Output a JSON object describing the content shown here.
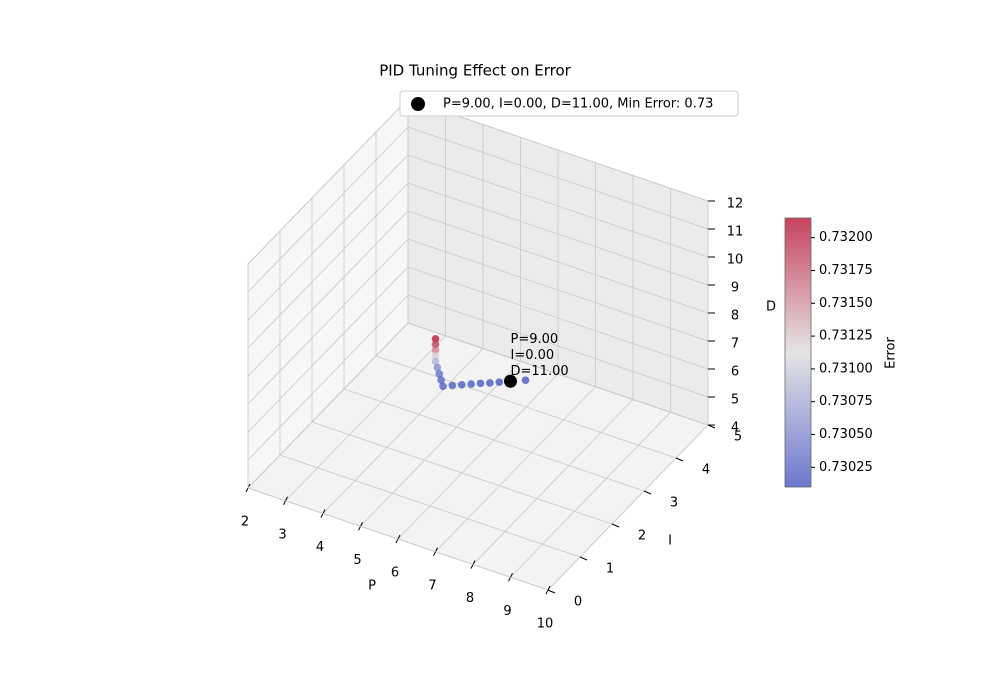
{
  "chart_data": {
    "type": "scatter3d",
    "title": "PID Tuning Effect on Error",
    "xlabel": "P",
    "ylabel": "I",
    "zlabel": "D",
    "xlim": [
      2,
      10
    ],
    "ylim": [
      0,
      5
    ],
    "zlim": [
      4,
      12
    ],
    "xticks": [
      2,
      3,
      4,
      5,
      6,
      7,
      8,
      9,
      10
    ],
    "yticks": [
      0,
      1,
      2,
      3,
      4,
      5
    ],
    "zticks": [
      4,
      5,
      6,
      7,
      8,
      9,
      10,
      11,
      12
    ],
    "grid": true,
    "series": [
      {
        "x": [
          7.0,
          7.0,
          7.0,
          7.0,
          7.0,
          7.05,
          7.1,
          7.15,
          7.2,
          7.45,
          7.7,
          7.95,
          8.2,
          8.45,
          8.7,
          9.0,
          9.4
        ],
        "y": [
          0,
          0,
          0,
          0,
          0,
          0,
          0,
          0,
          0,
          0,
          0,
          0,
          0,
          0,
          0,
          0,
          0
        ],
        "z": [
          11.6,
          11.4,
          11.2,
          11.0,
          10.8,
          10.6,
          10.4,
          10.2,
          10.0,
          10.14,
          10.28,
          10.42,
          10.56,
          10.69,
          10.83,
          11.0,
          11.22
        ],
        "values": [
          0.7321,
          0.7319,
          0.7316,
          0.7312,
          0.7308,
          0.7305,
          0.7303,
          0.7302,
          0.73018,
          0.73016,
          0.73015,
          0.73014,
          0.73013,
          0.73012,
          0.73011,
          0.7301,
          0.73012
        ]
      }
    ],
    "colormap": [
      "#3b4cc0",
      "#dddddd",
      "#b40426"
    ],
    "colorbar_label": "Error",
    "clim": [
      0.7301,
      0.73215
    ],
    "cticks": [
      0.73025,
      {
        "value": 0.7305,
        "label": "0.73050"
      },
      0.73075,
      {
        "value": 0.731,
        "label": "0.73100"
      },
      0.73125,
      {
        "value": 0.7315,
        "label": "0.73150"
      },
      0.73175,
      {
        "value": 0.732,
        "label": "0.73200"
      }
    ],
    "highlight": {
      "x": 9.0,
      "y": 0,
      "z": 11.0,
      "color": "#000000",
      "label": "P=9.00, I=0.00, D=11.00, Min Error: 0.73",
      "annotation": [
        "P=9.00",
        "I=0.00",
        "D=11.00"
      ]
    }
  }
}
